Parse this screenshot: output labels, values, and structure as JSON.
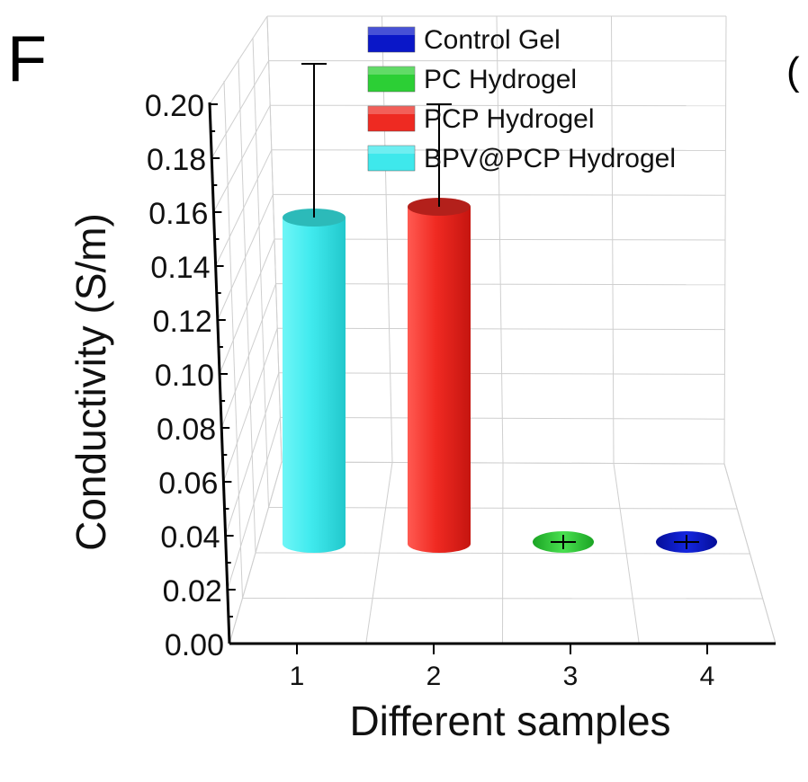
{
  "panel_label": "F",
  "edge_text": "(",
  "chart_data": {
    "type": "bar",
    "style": "3d-cylinder",
    "title": "",
    "xlabel": "Different samples",
    "ylabel": "Conductivity (S/m)",
    "ylim": [
      0,
      0.2
    ],
    "yticks": [
      "0.00",
      "0.02",
      "0.04",
      "0.06",
      "0.08",
      "0.10",
      "0.12",
      "0.14",
      "0.16",
      "0.18",
      "0.20"
    ],
    "categories": [
      "1",
      "2",
      "3",
      "4"
    ],
    "grid": true,
    "legend_position": "top",
    "series": [
      {
        "name": "BPV@PCP Hydrogel",
        "category": "1",
        "value": 0.121,
        "error": 0.057,
        "color": "#3ee8ec"
      },
      {
        "name": "PCP Hydrogel",
        "category": "2",
        "value": 0.125,
        "error": 0.038,
        "color": "#ee2a22"
      },
      {
        "name": "PC Hydrogel",
        "category": "3",
        "value": 0.001,
        "error": 0.0,
        "color": "#2ccf35"
      },
      {
        "name": "Control Gel",
        "category": "4",
        "value": 0.001,
        "error": 0.0,
        "color": "#0a17c8"
      }
    ],
    "legend": [
      {
        "name": "Control Gel",
        "color": "#0a17c8"
      },
      {
        "name": "PC Hydrogel",
        "color": "#2ccf35"
      },
      {
        "name": "PCP Hydrogel",
        "color": "#ee2a22"
      },
      {
        "name": "BPV@PCP Hydrogel",
        "color": "#3ee8ec"
      }
    ]
  }
}
